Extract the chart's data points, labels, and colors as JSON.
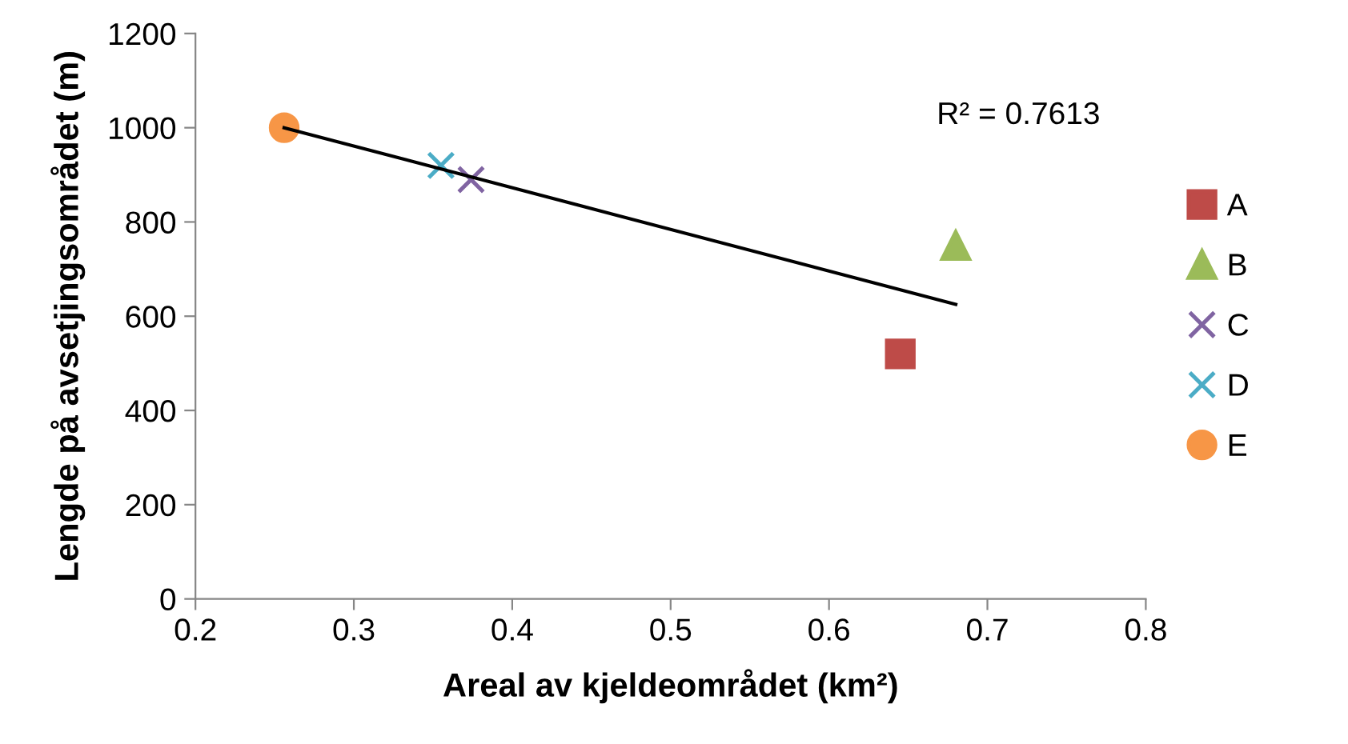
{
  "chart_data": {
    "type": "scatter",
    "xlabel": "Areal av kjeldeområdet (km²)",
    "ylabel": "Lengde på avsetjingsområdet (m)",
    "xlim": [
      0.2,
      0.8
    ],
    "xticks": [
      0.2,
      0.3,
      0.4,
      0.5,
      0.6,
      0.7,
      0.8
    ],
    "ylim": [
      0,
      1200
    ],
    "yticks": [
      0,
      200,
      400,
      600,
      800,
      1000,
      1200
    ],
    "grid": false,
    "legend": "right",
    "annotations": [
      "R² = 0.7613"
    ],
    "series": [
      {
        "name": "A",
        "color": "#be4b48",
        "marker": "square",
        "x": [
          0.645
        ],
        "values": [
          520
        ]
      },
      {
        "name": "B",
        "color": "#9bbb59",
        "marker": "triangle",
        "x": [
          0.68
        ],
        "values": [
          750
        ]
      },
      {
        "name": "C",
        "color": "#8064a2",
        "marker": "cross",
        "x": [
          0.374
        ],
        "values": [
          890
        ]
      },
      {
        "name": "D",
        "color": "#4bacc6",
        "marker": "cross",
        "x": [
          0.355
        ],
        "values": [
          920
        ]
      },
      {
        "name": "E",
        "color": "#f79646",
        "marker": "circle",
        "x": [
          0.256
        ],
        "values": [
          1000
        ]
      },
      {
        "type": "line",
        "color": "#000000",
        "marker": "none",
        "x": [
          0.256,
          0.68
        ],
        "values": [
          1000,
          625
        ]
      }
    ]
  }
}
